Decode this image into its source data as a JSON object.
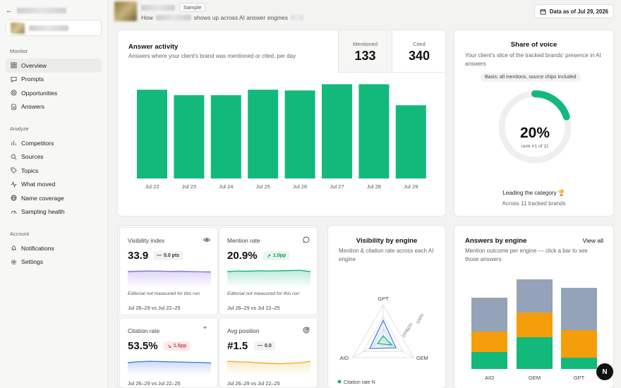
{
  "sidebar": {
    "back_icon": "arrow-left-icon",
    "sections": [
      {
        "heading": "Monitor",
        "items": [
          {
            "label": "Overview",
            "icon": "grid-icon",
            "active": true
          },
          {
            "label": "Prompts",
            "icon": "message-square-icon"
          },
          {
            "label": "Opportunities",
            "icon": "target-icon"
          },
          {
            "label": "Answers",
            "icon": "file-text-icon"
          }
        ]
      },
      {
        "heading": "Analyze",
        "items": [
          {
            "label": "Competitors",
            "icon": "bar-chart-icon"
          },
          {
            "label": "Sources",
            "icon": "search-icon"
          },
          {
            "label": "Topics",
            "icon": "tag-icon"
          },
          {
            "label": "What moved",
            "icon": "activity-icon"
          },
          {
            "label": "Name coverage",
            "icon": "globe-icon"
          },
          {
            "label": "Sampling health",
            "icon": "gauge-icon"
          }
        ]
      },
      {
        "heading": "Account",
        "items": [
          {
            "label": "Notifications",
            "icon": "bell-icon"
          },
          {
            "label": "Settings",
            "icon": "gear-icon"
          }
        ]
      }
    ]
  },
  "header": {
    "badge": "Sample",
    "subtitle_prefix": "How",
    "subtitle_suffix": "shows up across AI answer engines",
    "date_label": "Data as of Jul 29, 2026"
  },
  "activity": {
    "title": "Answer activity",
    "subtitle": "Answers where your client's brand was mentioned or cited, per day",
    "mentioned_label": "Mentioned",
    "mentioned_value": "133",
    "cited_label": "Cited",
    "cited_value": "340",
    "bar_color": "#13b97b"
  },
  "share_of_voice": {
    "title": "Share of voice",
    "subtitle": "Your client's slice of the tracked brands' presence in AI answers",
    "basis": "Basis: all mentions, source chips included",
    "value": "20%",
    "fraction": 0.2,
    "rank": "rank #1 of 11",
    "lead_title": "Leading the category",
    "lead_sub": "Across 11 tracked brands",
    "accent": "#13b97b"
  },
  "kpis": {
    "visibility": {
      "title": "Visibility index",
      "icon": "eye-icon",
      "value": "33.9",
      "delta": "0.0 pts",
      "delta_kind": "neutral",
      "note": "Editorial not measured for this run",
      "compare": "Jul 26–29 vs Jul 22–25",
      "color": "#8a6fe0"
    },
    "mention": {
      "title": "Mention rate",
      "icon": "message-circle-icon",
      "value": "20.9%",
      "delta": "1.0pp",
      "delta_kind": "up",
      "note": "Editorial not measured for this run",
      "compare": "Jul 26–29 vs Jul 22–25",
      "color": "#13b97b"
    },
    "citation": {
      "title": "Citation rate",
      "icon": "quote-icon",
      "value": "53.5%",
      "delta": "1.5pp",
      "delta_kind": "down",
      "compare": "Jul 26–29 vs Jul 22–25",
      "color": "#4a7fe0"
    },
    "position": {
      "title": "Avg position",
      "icon": "target-icon",
      "value": "#1.5",
      "delta": "0.0",
      "delta_kind": "neutral",
      "compare": "Jul 26–29 vs Jul 22–25",
      "color": "#e8b23a"
    }
  },
  "visibility_engine": {
    "title": "Visibility by engine",
    "subtitle": "Mention & citation rate across each AI engine",
    "engines": [
      "GPT",
      "GEM",
      "AIO"
    ],
    "ring_labels": [
      "25%",
      "50%",
      "100%"
    ],
    "legend": "Citation rate N"
  },
  "answers_engine": {
    "title": "Answers by engine",
    "link": "View all",
    "subtitle": "Mention outcome per engine — click a bar to see those answers",
    "colors": {
      "top": "#94a3b8",
      "mid": "#f59e0b",
      "bottom": "#13b97b"
    }
  },
  "avatar_letter": "N",
  "chart_data": [
    {
      "type": "bar",
      "categories": [
        "Jul 22",
        "Jul 23",
        "Jul 24",
        "Jul 25",
        "Jul 26",
        "Jul 27",
        "Jul 28",
        "Jul 29"
      ],
      "values": [
        114,
        107,
        107,
        114,
        113,
        121,
        121,
        94
      ]
    },
    {
      "type": "bar",
      "stacked": true,
      "categories": [
        "AIO",
        "GEM",
        "GPT"
      ],
      "series": [
        {
          "values": [
            24,
            45,
            16
          ]
        },
        {
          "values": [
            29,
            35,
            39
          ]
        },
        {
          "values": [
            48,
            47,
            60
          ]
        }
      ]
    }
  ]
}
